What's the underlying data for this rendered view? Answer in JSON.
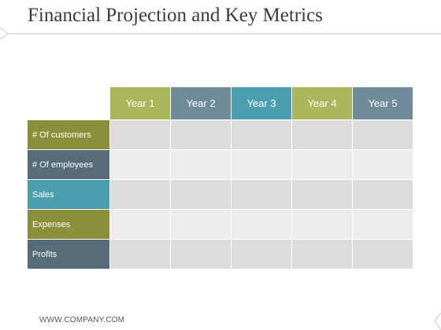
{
  "slide": {
    "title": "Financial Projection and Key Metrics",
    "footer": "WWW.COMPANY.COM"
  },
  "table": {
    "columns": [
      "Year 1",
      "Year 2",
      "Year 3",
      "Year 4",
      "Year 5"
    ],
    "column_colors": [
      "#a9b65a",
      "#6f8a99",
      "#4a9eae",
      "#a9b65a",
      "#6f8a99"
    ],
    "rows": [
      "# Of customers",
      "# Of employees",
      "Sales",
      "Expenses",
      "Profits"
    ],
    "row_colors": [
      "#8a8f3a",
      "#566c78",
      "#4a9eae",
      "#8a8f3a",
      "#566c78"
    ],
    "row_fill_colors": [
      "#dcdcdc",
      "#ececec",
      "#dcdcdc",
      "#ececec",
      "#dcdcdc"
    ]
  }
}
